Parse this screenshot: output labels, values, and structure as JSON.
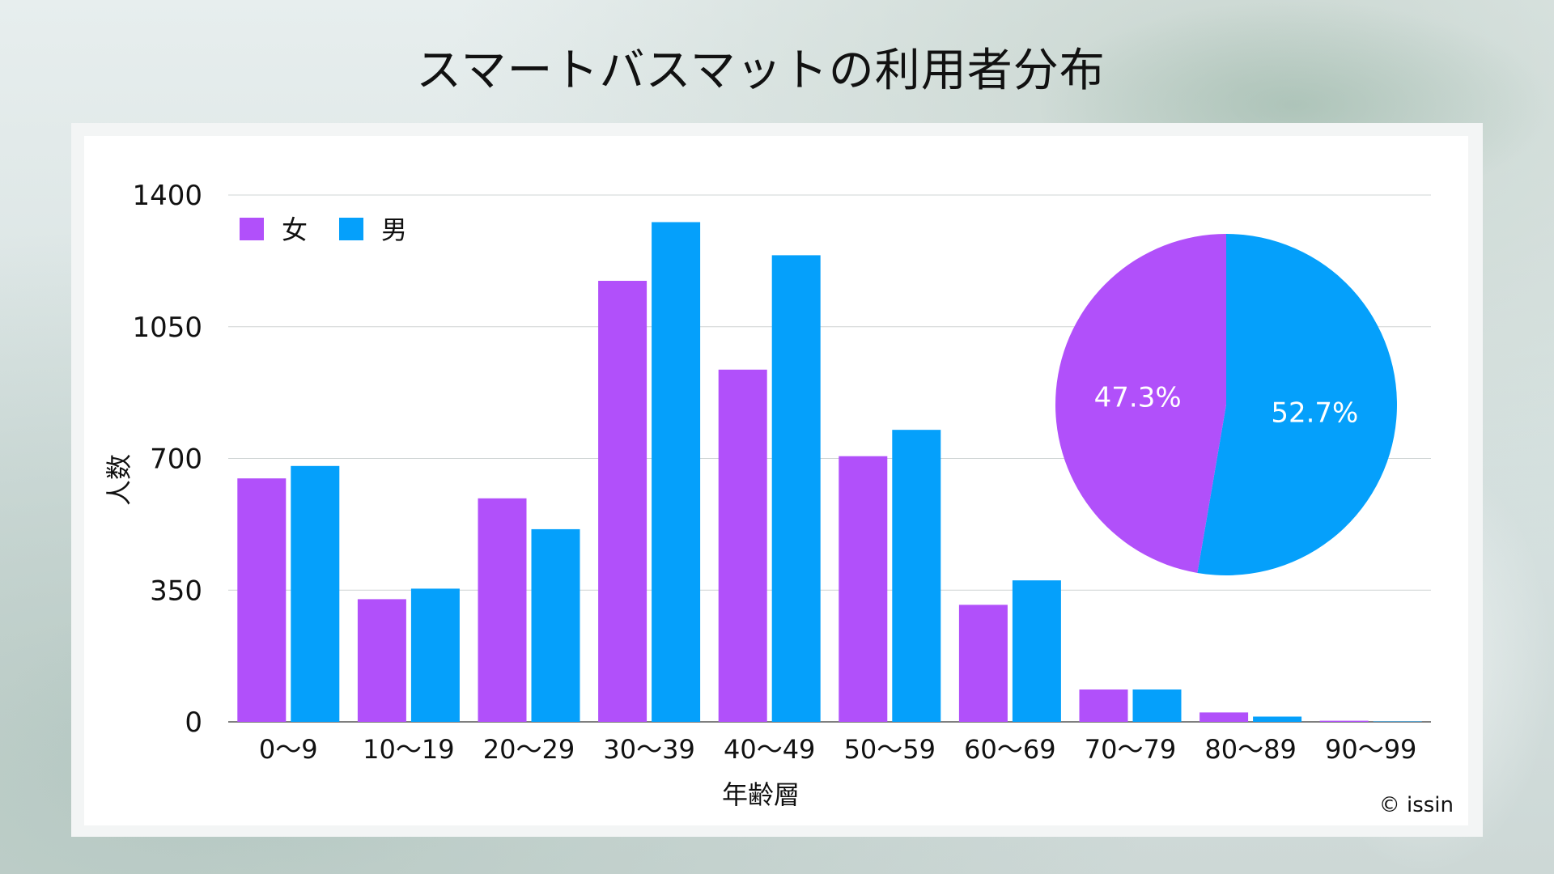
{
  "title": "スマートバスマットの利用者分布",
  "copyright": "© issin",
  "colors": {
    "female": "#b150fa",
    "male": "#05a0fb",
    "grid": "#cfd4d4",
    "axis": "#555555"
  },
  "chart_data": [
    {
      "type": "bar",
      "xlabel": "年齢層",
      "ylabel": "人数",
      "ylim": [
        0,
        1400
      ],
      "yticks": [
        0,
        350,
        700,
        1050,
        1400
      ],
      "grid": true,
      "legend_position": "top-left",
      "categories": [
        "0〜9",
        "10〜19",
        "20〜29",
        "30〜39",
        "40〜49",
        "50〜59",
        "60〜69",
        "70〜79",
        "80〜89",
        "90〜99"
      ],
      "series": [
        {
          "name": "女",
          "values": [
            647,
            326,
            594,
            1172,
            936,
            706,
            311,
            86,
            25,
            3
          ]
        },
        {
          "name": "男",
          "values": [
            680,
            354,
            512,
            1328,
            1240,
            776,
            376,
            86,
            14,
            1
          ]
        }
      ]
    },
    {
      "type": "pie",
      "slices": [
        {
          "name": "女",
          "value": 47.3,
          "label": "47.3%"
        },
        {
          "name": "男",
          "value": 52.7,
          "label": "52.7%"
        }
      ]
    }
  ]
}
